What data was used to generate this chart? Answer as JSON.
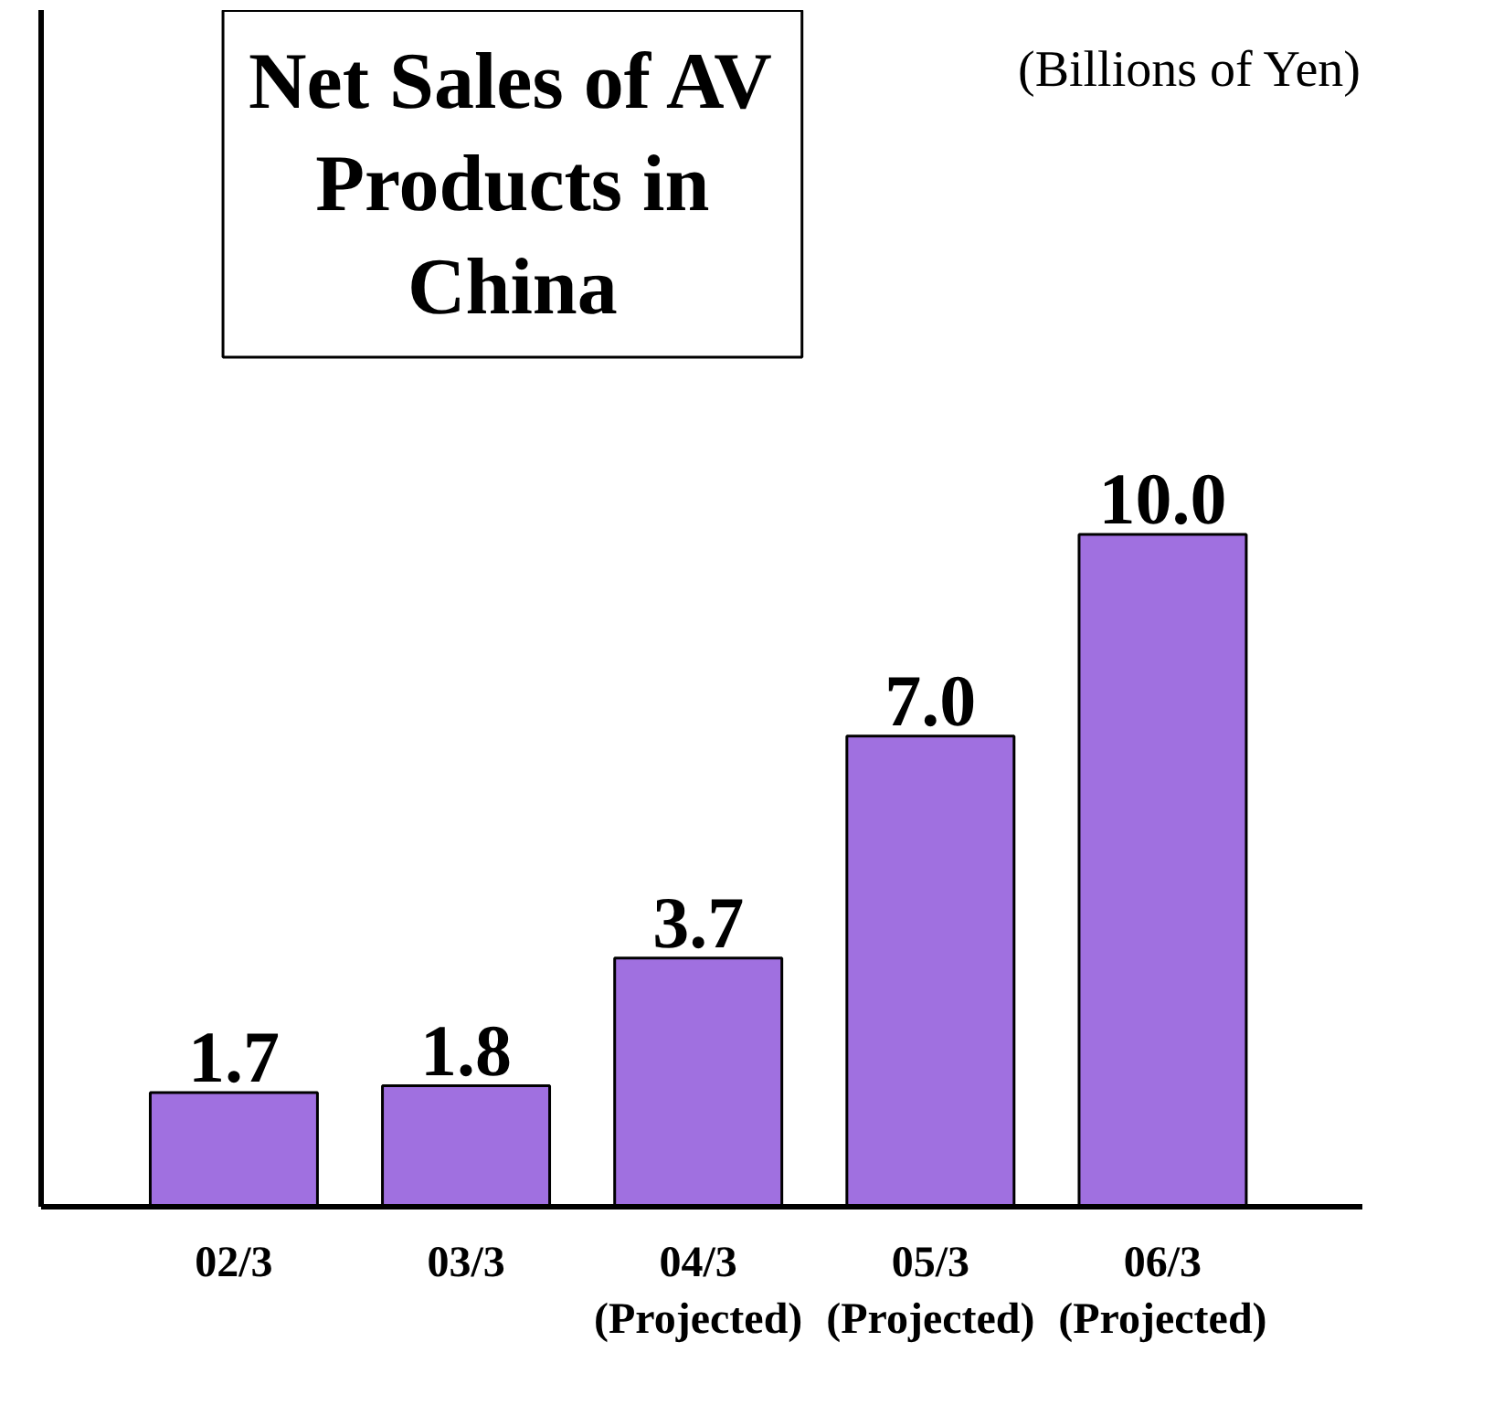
{
  "chart_data": {
    "type": "bar",
    "title": "Net Sales of AV Products in China",
    "subtitle": "(Billions of Yen)",
    "categories": [
      "02/3",
      "03/3",
      "04/3\n(Projected)",
      "05/3\n(Projected)",
      "06/3\n(Projected)"
    ],
    "values": [
      1.7,
      1.8,
      3.7,
      7.0,
      10.0
    ],
    "value_labels": [
      "1.7",
      "1.8",
      "3.7",
      "7.0",
      "10.0"
    ],
    "color": "#a070e0",
    "ylim": [
      0,
      17.8
    ],
    "tick_labels": "x",
    "grid": false
  }
}
